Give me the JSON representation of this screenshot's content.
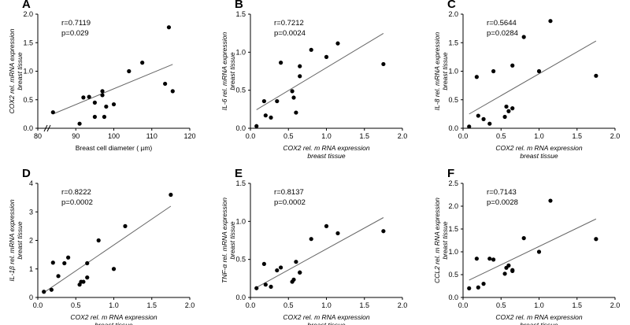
{
  "chart_data": [
    {
      "panel": "A",
      "type": "scatter",
      "ylabel": [
        "COX2 rel. mRNA expression",
        "breast tissue"
      ],
      "xlabel": [
        "Breast cell diameter ( µm)"
      ],
      "xticks": [
        80,
        90,
        100,
        110,
        120
      ],
      "yticks": [
        "0.0",
        "0.5",
        "1.0",
        "1.5",
        "2.0"
      ],
      "xlim": [
        80,
        120
      ],
      "ylim": [
        0,
        2.0
      ],
      "axis_break": true,
      "stats": [
        "r=0.7119",
        "p=0.029"
      ],
      "x": [
        84,
        91,
        92,
        93.5,
        95,
        95,
        97,
        97,
        97.5,
        98,
        100,
        104,
        107.5,
        113.5,
        114.5,
        115.5
      ],
      "y": [
        0.28,
        0.08,
        0.54,
        0.55,
        0.2,
        0.45,
        0.58,
        0.65,
        0.2,
        0.38,
        0.42,
        1.0,
        1.15,
        0.78,
        1.77,
        0.65
      ],
      "trend": [
        [
          84,
          0.25
        ],
        [
          115.5,
          1.12
        ]
      ]
    },
    {
      "panel": "B",
      "type": "scatter",
      "ylabel": [
        "IL-6 rel. mRNA expression",
        "breast tissue"
      ],
      "xlabel": [
        "COX2 rel. m RNA expression",
        "breast tissue"
      ],
      "xticks": [
        "0.0",
        "0.5",
        "1.0",
        "1.5",
        "2.0"
      ],
      "yticks": [
        "0.0",
        "0.5",
        "1.0",
        "1.5"
      ],
      "xlim": [
        0,
        2.0
      ],
      "ylim": [
        0,
        1.6
      ],
      "axis_break": false,
      "stats": [
        "r=0.7212",
        "p=0.0024"
      ],
      "x": [
        0.08,
        0.18,
        0.2,
        0.27,
        0.35,
        0.4,
        0.55,
        0.57,
        0.6,
        0.65,
        0.65,
        0.8,
        1.0,
        1.15,
        1.75
      ],
      "y": [
        0.03,
        0.38,
        0.18,
        0.15,
        0.38,
        0.92,
        0.52,
        0.43,
        0.22,
        0.73,
        0.87,
        1.1,
        1.0,
        1.19,
        0.9
      ],
      "trend": [
        [
          0.08,
          0.26
        ],
        [
          1.75,
          1.33
        ]
      ]
    },
    {
      "panel": "C",
      "type": "scatter",
      "ylabel": [
        "IL-8 rel. mRNA expression",
        "breast tissue"
      ],
      "xlabel": [
        "COX2 rel. m RNA expression",
        "breast tissue"
      ],
      "xticks": [
        "0.0",
        "0.5",
        "1.0",
        "1.5",
        "2.0"
      ],
      "yticks": [
        "0.0",
        "0.5",
        "1.0",
        "1.5",
        "2.0"
      ],
      "xlim": [
        0,
        2.0
      ],
      "ylim": [
        0,
        2.0
      ],
      "axis_break": false,
      "stats": [
        "r=0.5644",
        "p=0.0284"
      ],
      "x": [
        0.08,
        0.18,
        0.2,
        0.27,
        0.35,
        0.4,
        0.55,
        0.57,
        0.6,
        0.65,
        0.65,
        0.8,
        1.0,
        1.15,
        1.75
      ],
      "y": [
        0.03,
        0.9,
        0.22,
        0.16,
        0.08,
        1.0,
        0.2,
        0.38,
        0.3,
        1.1,
        0.35,
        1.6,
        1.0,
        1.88,
        0.92
      ],
      "trend": [
        [
          0.08,
          0.25
        ],
        [
          1.75,
          1.53
        ]
      ]
    },
    {
      "panel": "D",
      "type": "scatter",
      "ylabel": [
        "IL-1β rel. mRNA expression",
        "breast tissue"
      ],
      "xlabel": [
        "COX2 rel. m RNA expression",
        "breast tissue"
      ],
      "xticks": [
        "0.0",
        "0.5",
        "1.0",
        "1.5",
        "2.0"
      ],
      "yticks": [
        "0",
        "1",
        "2",
        "3",
        "4"
      ],
      "xlim": [
        0,
        2.0
      ],
      "ylim": [
        0,
        4
      ],
      "axis_break": false,
      "stats": [
        "r=0.8222",
        "p=0.0002"
      ],
      "x": [
        0.08,
        0.18,
        0.2,
        0.27,
        0.35,
        0.4,
        0.55,
        0.57,
        0.6,
        0.65,
        0.65,
        0.8,
        1.0,
        1.15,
        1.75
      ],
      "y": [
        0.2,
        0.27,
        1.22,
        0.75,
        1.2,
        1.4,
        0.45,
        0.55,
        0.55,
        0.7,
        1.2,
        2.0,
        1.0,
        2.5,
        3.6
      ],
      "trend": [
        [
          0.08,
          0.17
        ],
        [
          1.75,
          3.2
        ]
      ]
    },
    {
      "panel": "E",
      "type": "scatter",
      "ylabel": [
        "TNF-α rel. mRNA expression",
        "breast tissue"
      ],
      "xlabel": [
        "COX2 rel. m RNA expression",
        "breast tissue"
      ],
      "xticks": [
        "0.0",
        "0.5",
        "1.0",
        "1.5",
        "2.0"
      ],
      "yticks": [
        "0.0",
        "0.5",
        "1.0",
        "1.5"
      ],
      "xlim": [
        0,
        2.0
      ],
      "ylim": [
        0,
        1.6
      ],
      "axis_break": false,
      "stats": [
        "r=0.8137",
        "p=0.0002"
      ],
      "x": [
        0.08,
        0.18,
        0.2,
        0.27,
        0.35,
        0.4,
        0.55,
        0.57,
        0.6,
        0.65,
        0.65,
        0.8,
        1.0,
        1.15,
        1.75
      ],
      "y": [
        0.13,
        0.47,
        0.18,
        0.15,
        0.38,
        0.42,
        0.22,
        0.25,
        0.5,
        0.35,
        0.35,
        0.82,
        1.0,
        0.9,
        0.93
      ],
      "trend": [
        [
          0.08,
          0.14
        ],
        [
          1.75,
          1.12
        ]
      ]
    },
    {
      "panel": "F",
      "type": "scatter",
      "ylabel": [
        "CCL2 rel. m RNA expression",
        "breast tissue"
      ],
      "xlabel": [
        "COX2 rel. m RNA expression",
        "breast tissue"
      ],
      "xticks": [
        "0.0",
        "0.5",
        "1.0",
        "1.5",
        "2.0"
      ],
      "yticks": [
        "0.0",
        "0.5",
        "1.0",
        "1.5",
        "2.0",
        "2.5"
      ],
      "xlim": [
        0,
        2.0
      ],
      "ylim": [
        0,
        2.5
      ],
      "axis_break": false,
      "stats": [
        "r=0.7143",
        "p=0.0028"
      ],
      "x": [
        0.08,
        0.18,
        0.2,
        0.27,
        0.35,
        0.4,
        0.55,
        0.57,
        0.6,
        0.65,
        0.65,
        0.8,
        1.0,
        1.15,
        1.75
      ],
      "y": [
        0.2,
        0.85,
        0.22,
        0.3,
        0.85,
        0.83,
        0.52,
        0.65,
        0.7,
        0.6,
        0.58,
        1.3,
        1.0,
        2.12,
        1.28
      ],
      "trend": [
        [
          0.08,
          0.38
        ],
        [
          1.75,
          1.72
        ]
      ]
    }
  ]
}
